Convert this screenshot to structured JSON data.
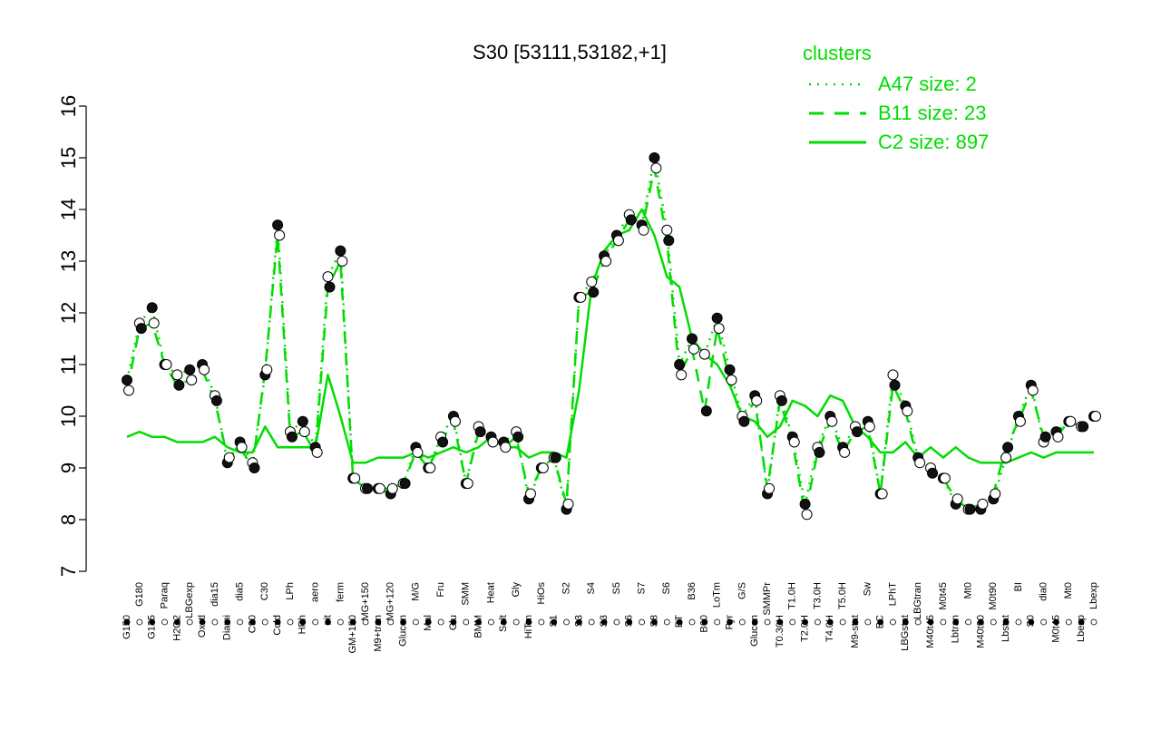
{
  "chart_data": {
    "type": "line",
    "title": "S30 [53111,53182,+1]",
    "xlabel": "",
    "ylabel": "",
    "ylim": [
      7,
      16
    ],
    "yticks": [
      7,
      8,
      9,
      10,
      11,
      12,
      13,
      14,
      15,
      16
    ],
    "legend": {
      "title": "clusters",
      "position": "top-right",
      "entries": [
        {
          "label": "A47 size: 2",
          "style": "dotted"
        },
        {
          "label": "B11 size: 23",
          "style": "dashed"
        },
        {
          "label": "C2 size: 897",
          "style": "solid"
        }
      ]
    },
    "colors": {
      "series": "#00dd00",
      "point_dark": "#111111",
      "point_light": "#ffffff",
      "axis": "#000000"
    },
    "x_tick_labels": [
      "G150",
      "G180",
      "G135",
      "Paraq",
      "H2O2",
      "LBGexp",
      "Oxctl",
      "dia15",
      "Diami",
      "dia5",
      "C90",
      "C30",
      "Cold",
      "LPh",
      "HPh",
      "aero",
      "nit",
      "ferm",
      "GM+150",
      "MG+150",
      "M9+tran",
      "MG+120",
      "Glucon",
      "M/G",
      "Mal",
      "Fru",
      "Glu",
      "SMM",
      "BMM",
      "Heat",
      "Salt",
      "Gly",
      "HiTm",
      "HiOs",
      "S1",
      "S2",
      "S3",
      "S4",
      "S3",
      "S5",
      "S6",
      "S7",
      "S8",
      "S6",
      "BT",
      "B36",
      "B60",
      "LoTm",
      "Pyr",
      "G/S",
      "Glucon",
      "SMMPr",
      "T0.30H",
      "T1.0H",
      "T2.0H",
      "T3.0H",
      "T4.0H",
      "T5.0H",
      "M9-stat",
      "Sw",
      "BC",
      "LPhT",
      "LBGstat",
      "LBGtran",
      "M40t45",
      "M0t45",
      "Lbtran",
      "Mt0",
      "M40t90",
      "M0t90",
      "Lbstat",
      "BI",
      "S0",
      "dia0",
      "M0t45",
      "Mt0",
      "Lbexp",
      "Lbexp"
    ],
    "series": [
      {
        "name": "C2 size: 897",
        "style": "solid",
        "values": [
          9.6,
          9.7,
          9.6,
          9.6,
          9.5,
          9.5,
          9.5,
          9.6,
          9.4,
          9.3,
          9.3,
          9.8,
          9.4,
          9.4,
          9.4,
          9.4,
          10.8,
          10.0,
          9.1,
          9.1,
          9.2,
          9.2,
          9.2,
          9.3,
          9.2,
          9.3,
          9.4,
          9.3,
          9.4,
          9.6,
          9.4,
          9.4,
          9.2,
          9.3,
          9.3,
          9.2,
          10.5,
          12.5,
          13.2,
          13.5,
          13.6,
          14.0,
          13.5,
          12.7,
          12.5,
          11.5,
          11.2,
          11.0,
          10.6,
          10.0,
          9.9,
          9.6,
          9.8,
          10.3,
          10.2,
          10.0,
          10.4,
          10.3,
          9.8,
          9.6,
          9.3,
          9.3,
          9.5,
          9.2,
          9.4,
          9.2,
          9.4,
          9.2,
          9.1,
          9.1,
          9.1,
          9.2,
          9.3,
          9.2,
          9.3,
          9.3,
          9.3,
          9.3
        ]
      },
      {
        "name": "B11 size: 23",
        "style": "dashed",
        "values": [
          10.5,
          11.7,
          11.8,
          11.0,
          10.6,
          10.7,
          10.9,
          10.3,
          9.2,
          9.4,
          9.0,
          10.9,
          13.5,
          9.6,
          9.7,
          9.3,
          12.5,
          13.0,
          8.8,
          8.6,
          8.6,
          8.6,
          8.7,
          9.3,
          9.0,
          9.5,
          9.9,
          8.7,
          9.7,
          9.5,
          9.4,
          9.6,
          8.5,
          9.0,
          9.2,
          8.3,
          12.3,
          12.4,
          13.0,
          13.4,
          13.8,
          13.6,
          14.8,
          13.4,
          10.8,
          11.3,
          10.1,
          11.7,
          10.7,
          9.9,
          10.3,
          8.6,
          10.3,
          9.5,
          8.1,
          9.3,
          9.9,
          9.3,
          9.7,
          9.8,
          8.5,
          10.6,
          10.1,
          9.1,
          8.9,
          8.8,
          8.4,
          8.2,
          8.3,
          8.5,
          9.4,
          9.9,
          10.5,
          9.6,
          9.6,
          9.9,
          9.8,
          10.0
        ]
      },
      {
        "name": "A47 size: 2",
        "style": "dotted",
        "values": [
          10.7,
          11.8,
          12.1,
          11.0,
          10.8,
          10.9,
          11.0,
          10.4,
          9.1,
          9.5,
          9.1,
          10.8,
          13.7,
          9.7,
          9.9,
          9.4,
          12.7,
          13.2,
          8.8,
          8.6,
          8.6,
          8.5,
          8.7,
          9.4,
          9.0,
          9.6,
          10.0,
          8.7,
          9.8,
          9.6,
          9.5,
          9.7,
          8.4,
          9.0,
          9.2,
          8.2,
          12.3,
          12.6,
          13.1,
          13.5,
          13.9,
          13.7,
          15.0,
          13.6,
          11.0,
          11.5,
          11.2,
          11.9,
          10.9,
          10.0,
          10.4,
          8.5,
          10.4,
          9.6,
          8.3,
          9.4,
          10.0,
          9.4,
          9.8,
          9.9,
          8.5,
          10.8,
          10.2,
          9.2,
          9.0,
          8.8,
          8.3,
          8.2,
          8.2,
          8.4,
          9.2,
          10.0,
          10.6,
          9.5,
          9.7,
          9.9,
          9.8,
          10.0
        ]
      }
    ]
  }
}
